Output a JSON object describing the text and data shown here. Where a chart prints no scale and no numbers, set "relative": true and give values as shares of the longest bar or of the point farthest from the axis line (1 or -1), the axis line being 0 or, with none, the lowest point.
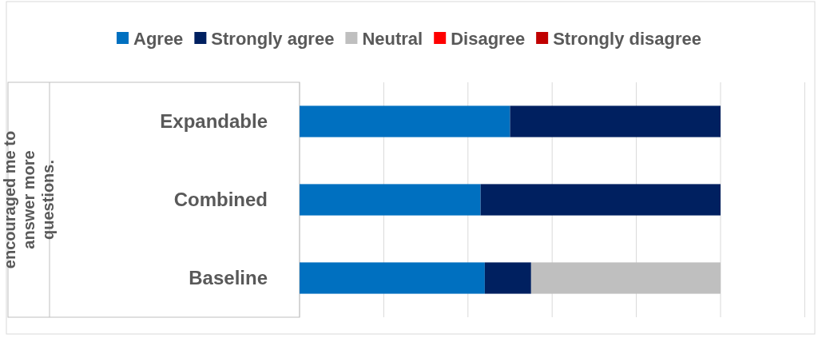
{
  "chart_data": {
    "type": "bar",
    "orientation": "horizontal",
    "stacked": true,
    "relative": true,
    "annotations": [
      "encouraged me to answer more questions."
    ],
    "categories": [
      "Expandable",
      "Combined",
      "Baseline"
    ],
    "series": [
      {
        "name": "Agree",
        "color": "#0070c0",
        "values": [
          0.5,
          0.43,
          0.44
        ]
      },
      {
        "name": "Strongly agree",
        "color": "#002060",
        "values": [
          0.5,
          0.57,
          0.11
        ]
      },
      {
        "name": "Neutral",
        "color": "#bfbfbf",
        "values": [
          0,
          0,
          0.45
        ]
      },
      {
        "name": "Disagree",
        "color": "#ff0000",
        "values": [
          0,
          0,
          0
        ]
      },
      {
        "name": "Strongly disagree",
        "color": "#c00000",
        "values": [
          0,
          0,
          0
        ]
      }
    ],
    "legend": "top"
  }
}
